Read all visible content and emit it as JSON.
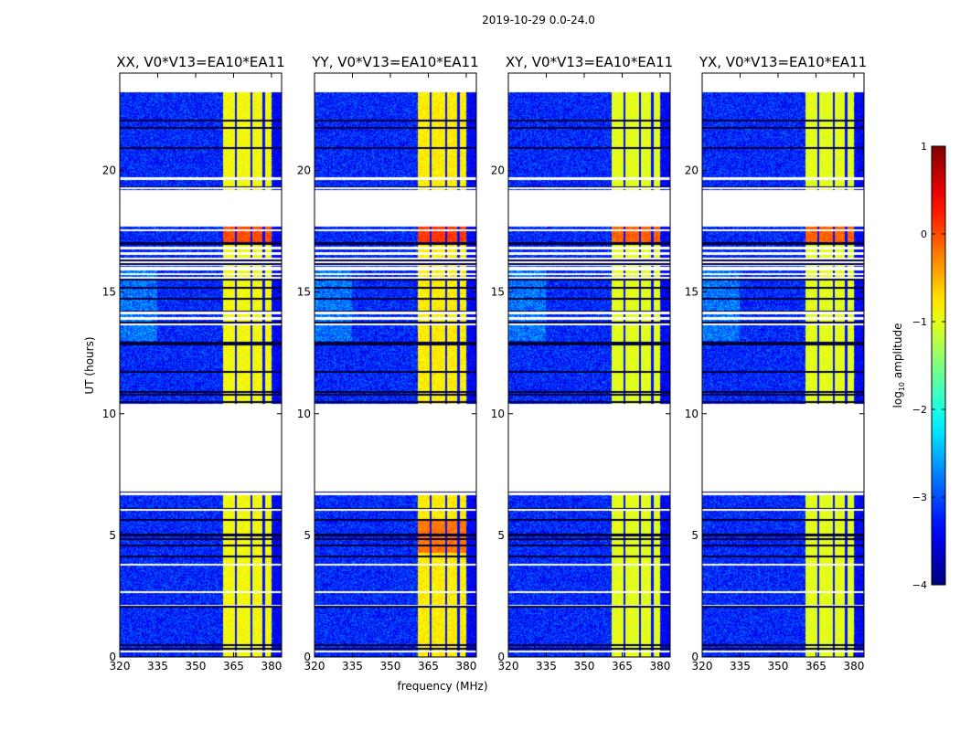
{
  "chart_data": {
    "type": "heatmap",
    "suptitle": "2019-10-29 0.0-24.0",
    "xlabel": "frequency (MHz)",
    "ylabel": "UT (hours)",
    "xlim": [
      320,
      384
    ],
    "ylim": [
      0,
      24
    ],
    "xticks": [
      320,
      335,
      350,
      365,
      380
    ],
    "yticks": [
      0,
      5,
      10,
      15,
      20
    ],
    "panels": [
      {
        "title": "XX, V0*V13=EA10*EA11",
        "band_level": -0.9
      },
      {
        "title": "YY, V0*V13=EA10*EA11",
        "band_level": -0.8
      },
      {
        "title": "XY, V0*V13=EA10*EA11",
        "band_level": -1.0
      },
      {
        "title": "YX, V0*V13=EA10*EA11",
        "band_level": -1.0
      }
    ],
    "data_time_ranges": [
      [
        0.0,
        6.8
      ],
      [
        10.4,
        17.7
      ],
      [
        19.2,
        23.2
      ]
    ],
    "background_level": -3.2,
    "bright_band_mhz": [
      361,
      380
    ],
    "band_dark_channels_mhz": [
      366,
      372,
      377
    ],
    "colorbar": {
      "label": "log10 amplitude",
      "label_main": "log",
      "label_sub": "10",
      "label_rest": " amplitude",
      "range": [
        -4,
        1
      ],
      "ticks": [
        "1",
        "0",
        "−1",
        "−2",
        "−3",
        "−4"
      ],
      "colormap": "jet"
    }
  }
}
